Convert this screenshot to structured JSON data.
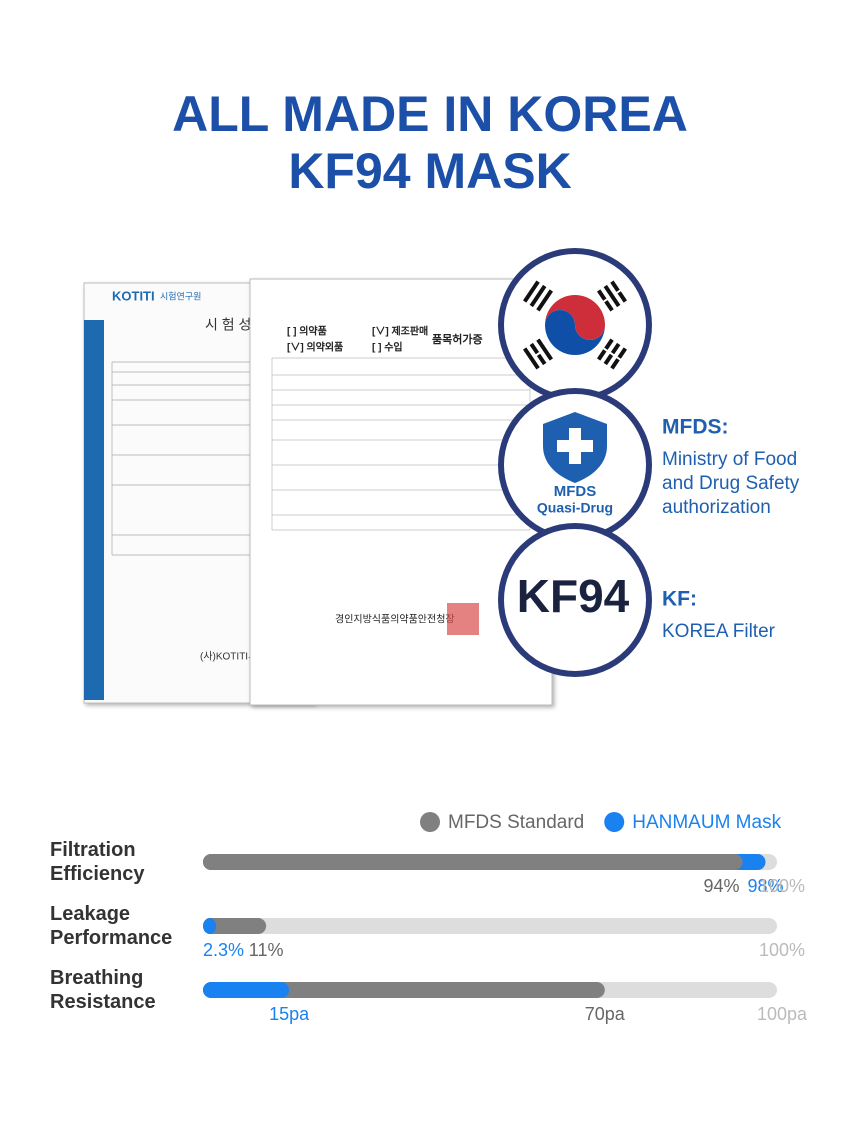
{
  "header": {
    "title_line1": "ALL MADE IN KOREA",
    "title_line2": "KF94 MASK"
  },
  "documents": {
    "test_report": {
      "logo": "KOTITI",
      "org": "시험연구원",
      "title": "시 험 성",
      "footer": "(사)KOTITI시"
    },
    "license": {
      "row1_a": "[  ] 의약품",
      "row1_b": "[∨] 제조판매",
      "row2_a": "[∨] 의약외품",
      "row2_b": "[  ] 수입",
      "title": "품목허가증",
      "issuer": "경인지방식품의약품안전청장"
    }
  },
  "badges": [
    {
      "label": ""
    },
    {
      "label": "MFDS",
      "sublabel": "Quasi-Drug",
      "heading": "MFDS:",
      "description": "Ministry of Food and Drug Safety authorization"
    },
    {
      "label": "KF94",
      "heading": "KF:",
      "description": "KOREA Filter"
    }
  ],
  "chart_data": {
    "type": "bar",
    "orientation": "horizontal",
    "categories": [
      "Filtration Efficiency",
      "Leakage Performance",
      "Breathing Resistance"
    ],
    "xlim": [
      0,
      100
    ],
    "max_labels": [
      "100%",
      "100%",
      "100pa"
    ],
    "series": [
      {
        "name": "MFDS Standard",
        "color": "#808080",
        "values": [
          94,
          11,
          70
        ],
        "value_labels": [
          "94%",
          "11%",
          "70pa"
        ]
      },
      {
        "name": "HANMAUM Mask",
        "color": "#1a82f0",
        "values": [
          98,
          2.3,
          15
        ],
        "value_labels": [
          "98%",
          "2.3%",
          "15pa"
        ]
      }
    ]
  }
}
